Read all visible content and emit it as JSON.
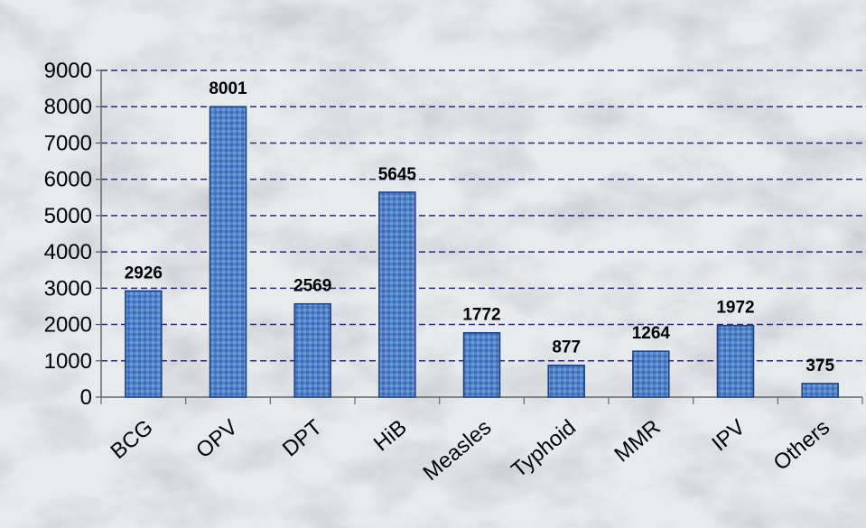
{
  "chart_data": {
    "type": "bar",
    "categories": [
      "BCG",
      "OPV",
      "DPT",
      "HiB",
      "Measles",
      "Typhoid",
      "MMR",
      "IPV",
      "Others"
    ],
    "values": [
      2926,
      8001,
      2569,
      5645,
      1772,
      877,
      1264,
      1972,
      375
    ],
    "ylim": [
      0,
      9000
    ],
    "yticks": [
      0,
      1000,
      2000,
      3000,
      4000,
      5000,
      6000,
      7000,
      8000,
      9000
    ],
    "grid": true,
    "legend": "none",
    "colors": {
      "bar_fill": "#4a7cc4",
      "bar_stroke": "#1f3f7a",
      "grid": "#2a2a7a",
      "background": "#e9ecef"
    }
  }
}
